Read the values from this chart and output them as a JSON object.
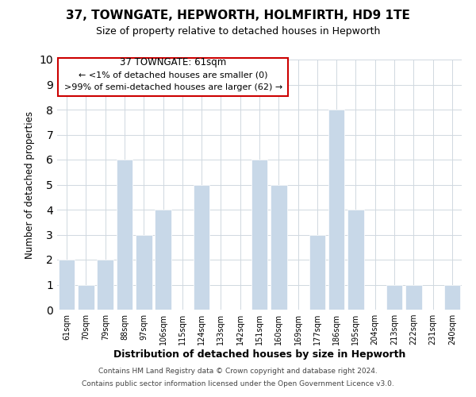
{
  "title": "37, TOWNGATE, HEPWORTH, HOLMFIRTH, HD9 1TE",
  "subtitle": "Size of property relative to detached houses in Hepworth",
  "xlabel": "Distribution of detached houses by size in Hepworth",
  "ylabel": "Number of detached properties",
  "categories": [
    "61sqm",
    "70sqm",
    "79sqm",
    "88sqm",
    "97sqm",
    "106sqm",
    "115sqm",
    "124sqm",
    "133sqm",
    "142sqm",
    "151sqm",
    "160sqm",
    "169sqm",
    "177sqm",
    "186sqm",
    "195sqm",
    "204sqm",
    "213sqm",
    "222sqm",
    "231sqm",
    "240sqm"
  ],
  "values": [
    2,
    1,
    2,
    6,
    3,
    4,
    0,
    5,
    0,
    0,
    6,
    5,
    0,
    3,
    8,
    4,
    0,
    1,
    1,
    0,
    1
  ],
  "bar_color": "#c8d8e8",
  "ylim": [
    0,
    10
  ],
  "yticks": [
    0,
    1,
    2,
    3,
    4,
    5,
    6,
    7,
    8,
    9,
    10
  ],
  "annotation_title": "37 TOWNGATE: 61sqm",
  "annotation_line1": "← <1% of detached houses are smaller (0)",
  "annotation_line2": ">99% of semi-detached houses are larger (62) →",
  "annotation_box_color": "#ffffff",
  "annotation_box_edge": "#cc0000",
  "footer_line1": "Contains HM Land Registry data © Crown copyright and database right 2024.",
  "footer_line2": "Contains public sector information licensed under the Open Government Licence v3.0.",
  "background_color": "#ffffff",
  "grid_color": "#d0d8e0"
}
